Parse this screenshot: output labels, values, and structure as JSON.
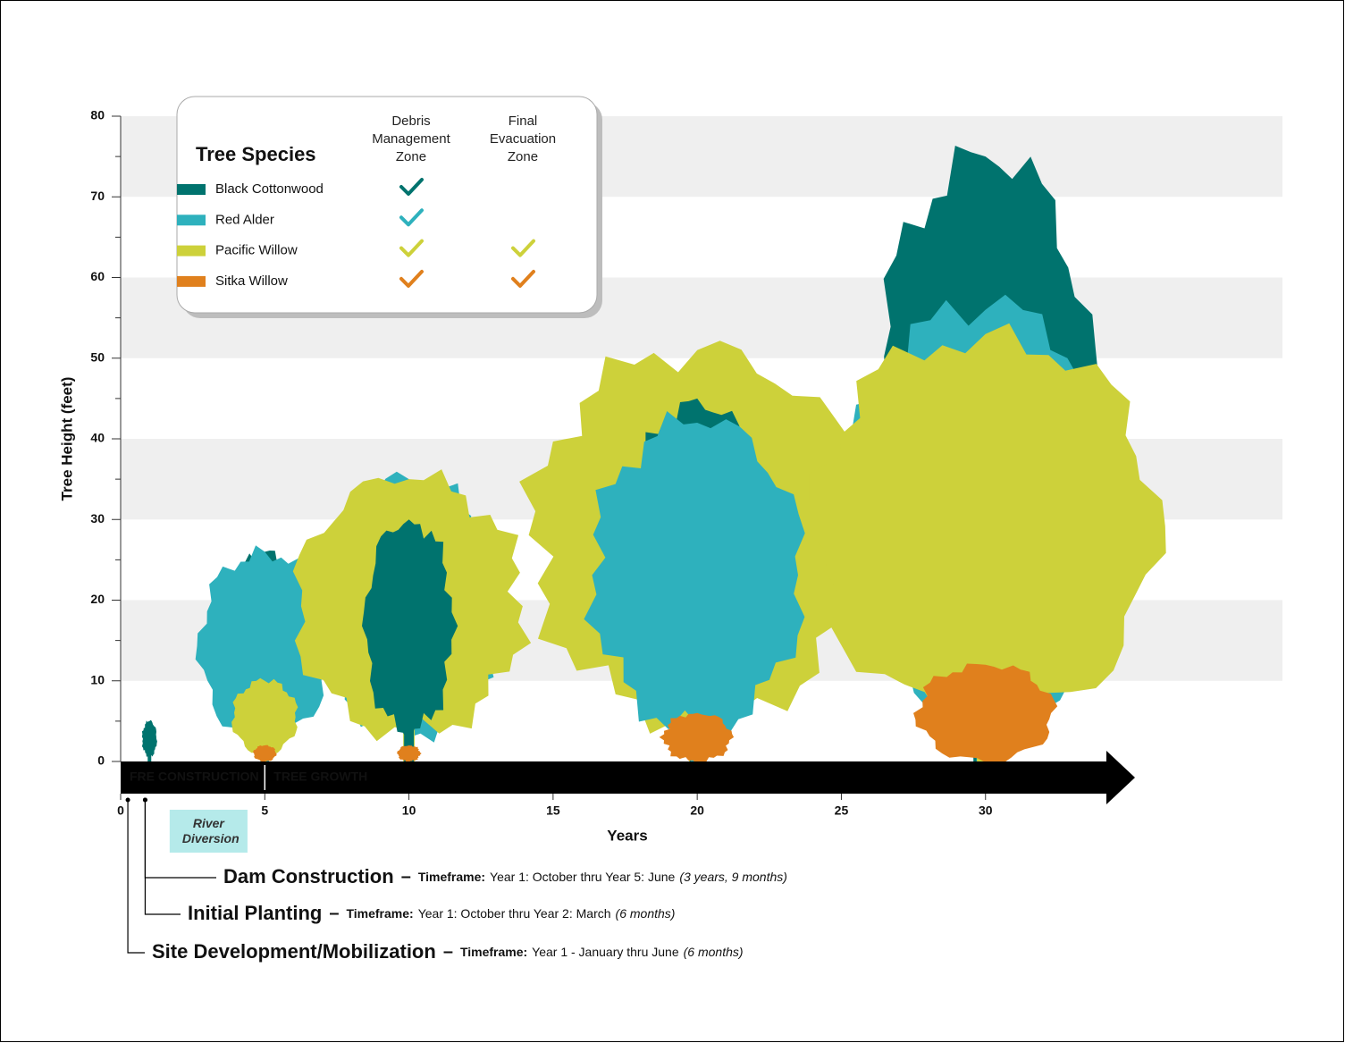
{
  "chart_data": {
    "type": "tree",
    "y_label": "Tree Height (feet)",
    "x_label": "Years",
    "ylim": [
      0,
      80
    ],
    "yticks": [
      0,
      10,
      20,
      30,
      40,
      50,
      60,
      70,
      80
    ],
    "yticks_minor": [
      5,
      15,
      25,
      35,
      45,
      55,
      65,
      75
    ],
    "xlim": [
      0,
      40.3
    ],
    "xticks": [
      0,
      5,
      10,
      15,
      20,
      25,
      30
    ],
    "grid_bands": true,
    "x": [
      1,
      5,
      10,
      20,
      30
    ],
    "legend": {
      "title": "Tree Species",
      "columns": [
        "Debris Management Zone",
        "Final Evacuation Zone"
      ]
    },
    "series": [
      {
        "name": "Black Cottonwood",
        "color": "#00736e",
        "values": [
          5,
          26,
          30,
          45,
          75
        ],
        "zones": [
          true,
          false
        ]
      },
      {
        "name": "Red Alder",
        "color": "#2eb1bd",
        "values": [
          null,
          26,
          35,
          42,
          56
        ],
        "zones": [
          true,
          false
        ]
      },
      {
        "name": "Pacific Willow",
        "color": "#cdd13a",
        "values": [
          null,
          10,
          35,
          51,
          53
        ],
        "zones": [
          true,
          true
        ]
      },
      {
        "name": "Sitka Willow",
        "color": "#e0801d",
        "values": [
          null,
          2,
          2,
          6,
          12
        ],
        "zones": [
          true,
          true
        ]
      }
    ],
    "phases": [
      {
        "label": "FRE CONSTRUCTION",
        "start": 0
      },
      {
        "label": "TREE GROWTH",
        "start": 5
      }
    ],
    "river_diversion": {
      "label": "River Diversion",
      "start": 1.7,
      "end": 4.4
    },
    "milestones": [
      {
        "title": "Dam Construction",
        "dash": "–",
        "timeframe_label": "Timeframe:",
        "timeframe": "Year 1: October thru Year 5: June",
        "duration": "(3 years, 9 months)",
        "x": 0.85
      },
      {
        "title": "Initial Planting",
        "dash": "–",
        "timeframe_label": "Timeframe:",
        "timeframe": "Year 1: October thru Year 2: March",
        "duration": "(6 months)",
        "x": 0.85
      },
      {
        "title": "Site Development/Mobilization",
        "dash": "–",
        "timeframe_label": "Timeframe:",
        "timeframe": "Year 1 - January thru June",
        "duration": "(6 months)",
        "x": 0.25
      }
    ]
  }
}
